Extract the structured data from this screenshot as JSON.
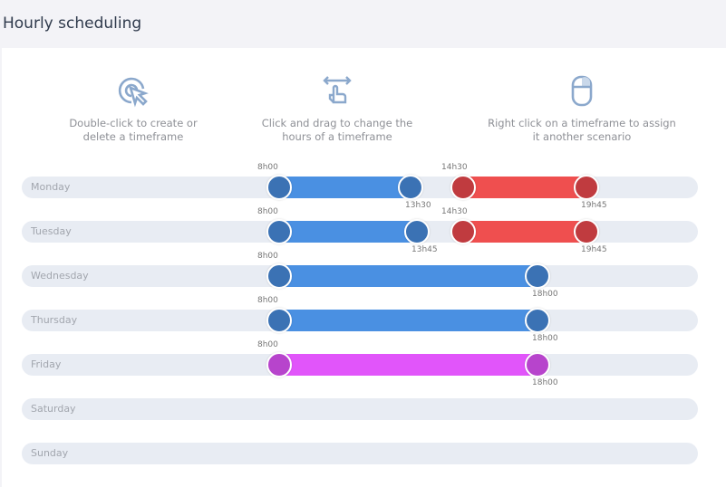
{
  "title": "Hourly scheduling",
  "hints": [
    {
      "icon": "double-click-icon",
      "text_line1": "Double-click to create or",
      "text_line2": "delete a timeframe"
    },
    {
      "icon": "drag-hand-icon",
      "text_line1": "Click and drag to change the",
      "text_line2": "hours of a timeframe"
    },
    {
      "icon": "mouse-right-click-icon",
      "text_line1": "Right click on a timeframe to assign",
      "text_line2": "it another scenario"
    }
  ],
  "colors": {
    "blue_bar": "#4a90e2",
    "blue_handle": "#3b72b4",
    "red_bar": "#ef4f4f",
    "red_handle": "#c03b3f",
    "purple_bar": "#e155fa",
    "purple_handle": "#b744cc",
    "track": "#e8ecf3"
  },
  "days": [
    {
      "label": "Monday",
      "timeframes": [
        {
          "start": "8h00",
          "end": "13h30",
          "scenario": "blue"
        },
        {
          "start": "14h30",
          "end": "19h45",
          "scenario": "red"
        }
      ]
    },
    {
      "label": "Tuesday",
      "timeframes": [
        {
          "start": "8h00",
          "end": "13h45",
          "scenario": "blue"
        },
        {
          "start": "14h30",
          "end": "19h45",
          "scenario": "red"
        }
      ]
    },
    {
      "label": "Wednesday",
      "timeframes": [
        {
          "start": "8h00",
          "end": "18h00",
          "scenario": "blue"
        }
      ]
    },
    {
      "label": "Thursday",
      "timeframes": [
        {
          "start": "8h00",
          "end": "18h00",
          "scenario": "blue"
        }
      ]
    },
    {
      "label": "Friday",
      "timeframes": [
        {
          "start": "8h00",
          "end": "18h00",
          "scenario": "purple"
        }
      ]
    },
    {
      "label": "Saturday",
      "timeframes": []
    },
    {
      "label": "Sunday",
      "timeframes": []
    }
  ],
  "dropdown_icon": "caret-down-icon"
}
